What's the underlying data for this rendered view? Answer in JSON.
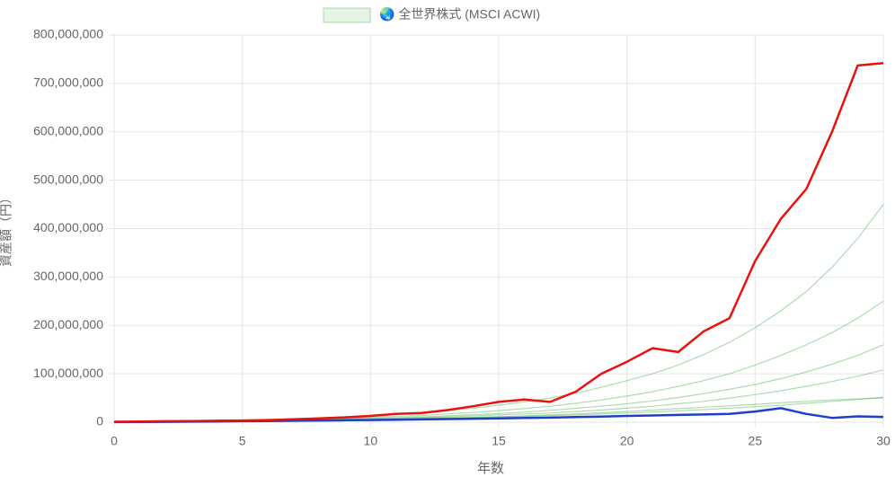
{
  "chart_data": {
    "type": "line",
    "x_label": "年数",
    "y_label": "資産額（円）",
    "x": [
      0,
      1,
      2,
      3,
      4,
      5,
      6,
      7,
      8,
      9,
      10,
      11,
      12,
      13,
      14,
      15,
      16,
      17,
      18,
      19,
      20,
      21,
      22,
      23,
      24,
      25,
      26,
      27,
      28,
      29,
      30
    ],
    "xlim": [
      0,
      30
    ],
    "xticks": [
      0,
      5,
      10,
      15,
      20,
      25,
      30
    ],
    "ylim": [
      0,
      800000000
    ],
    "yticks": [
      {
        "value": 0,
        "label": "0"
      },
      {
        "value": 100000000,
        "label": "100,000,000"
      },
      {
        "value": 200000000,
        "label": "200,000,000"
      },
      {
        "value": 300000000,
        "label": "300,000,000"
      },
      {
        "value": 400000000,
        "label": "400,000,000"
      },
      {
        "value": 500000000,
        "label": "500,000,000"
      },
      {
        "value": 600000000,
        "label": "600,000,000"
      },
      {
        "value": 700000000,
        "label": "700,000,000"
      },
      {
        "value": 800000000,
        "label": "800,000,000"
      }
    ],
    "grid": true,
    "series": [
      {
        "name": "🌏 全世界株式 (MSCI ACWI)",
        "color": "rgba(76,175,80,0.45)",
        "values": [
          1000000,
          1200000,
          1500000,
          2000000,
          2500000,
          3000000,
          3600000,
          4300000,
          5000000,
          6000000,
          7000000,
          8000000,
          9500000,
          11000000,
          13000000,
          15000000,
          17000000,
          19000000,
          22000000,
          25000000,
          29000000,
          33000000,
          38000000,
          43000000,
          50000000,
          57000000,
          65000000,
          74000000,
          84000000,
          95000000,
          108000000
        ]
      },
      {
        "color": "rgba(76,175,80,0.45)",
        "values": [
          1000000,
          1300000,
          1700000,
          2200000,
          2800000,
          3500000,
          4500000,
          5500000,
          7000000,
          8500000,
          10000000,
          12000000,
          14000000,
          17000000,
          20000000,
          24000000,
          28000000,
          33000000,
          39000000,
          46000000,
          54000000,
          63000000,
          74000000,
          86000000,
          100000000,
          118000000,
          138000000,
          160000000,
          185000000,
          215000000,
          250000000
        ]
      },
      {
        "color": "rgba(76,175,80,0.45)",
        "values": [
          1000000,
          1100000,
          1400000,
          1800000,
          2200000,
          2700000,
          3200000,
          3800000,
          4400000,
          5000000,
          5700000,
          6500000,
          7400000,
          8400000,
          9500000,
          10700000,
          12000000,
          13500000,
          15000000,
          17000000,
          19000000,
          21000000,
          23500000,
          26000000,
          29000000,
          32000000,
          35000000,
          39000000,
          43000000,
          47000000,
          52000000
        ]
      },
      {
        "color": "rgba(76,175,80,0.45)",
        "values": [
          1000000,
          1400000,
          1900000,
          2600000,
          3400000,
          4400000,
          5600000,
          7000000,
          8800000,
          11000000,
          13500000,
          16500000,
          20000000,
          24000000,
          29000000,
          35000000,
          42000000,
          50000000,
          60000000,
          72000000,
          86000000,
          100000000,
          118000000,
          140000000,
          165000000,
          195000000,
          230000000,
          270000000,
          320000000,
          380000000,
          450000000
        ]
      },
      {
        "color": "rgba(76,175,80,0.45)",
        "values": [
          1000000,
          1200000,
          1400000,
          1700000,
          2000000,
          2400000,
          2900000,
          3500000,
          4200000,
          5000000,
          6000000,
          7000000,
          8000000,
          9000000,
          10000000,
          11500000,
          13000000,
          15000000,
          17000000,
          19500000,
          22000000,
          25000000,
          28000000,
          31000000,
          34000000,
          37000000,
          40000000,
          43000000,
          46000000,
          48000000,
          50000000
        ]
      },
      {
        "color": "rgba(76,175,80,0.45)",
        "values": [
          1000000,
          1300000,
          1600000,
          2000000,
          2500000,
          3100000,
          3800000,
          4600000,
          5500000,
          6600000,
          7900000,
          9400000,
          11000000,
          13000000,
          15500000,
          18000000,
          21000000,
          24500000,
          28500000,
          33000000,
          38000000,
          44000000,
          51000000,
          59000000,
          68000000,
          78000000,
          90000000,
          104000000,
          120000000,
          138000000,
          160000000
        ]
      },
      {
        "color": "#1f3fc4",
        "values": [
          500000,
          600000,
          800000,
          1100000,
          1500000,
          2000000,
          2500000,
          3000000,
          3500000,
          4000000,
          4500000,
          5000000,
          5800000,
          6500000,
          7200000,
          8000000,
          9000000,
          9500000,
          10500000,
          11500000,
          13000000,
          14000000,
          15000000,
          16000000,
          17000000,
          22000000,
          29000000,
          17000000,
          9000000,
          12000000,
          11000000
        ]
      },
      {
        "color": "#e8120c",
        "values": [
          1000000,
          1500000,
          2000000,
          2500000,
          3000000,
          3500000,
          4500000,
          6000000,
          8000000,
          10000000,
          13000000,
          17000000,
          19000000,
          25000000,
          33000000,
          42000000,
          47000000,
          42000000,
          63000000,
          100000000,
          125000000,
          153000000,
          145000000,
          188000000,
          215000000,
          333000000,
          420000000,
          482000000,
          600000000,
          737000000,
          742000000
        ]
      }
    ]
  }
}
